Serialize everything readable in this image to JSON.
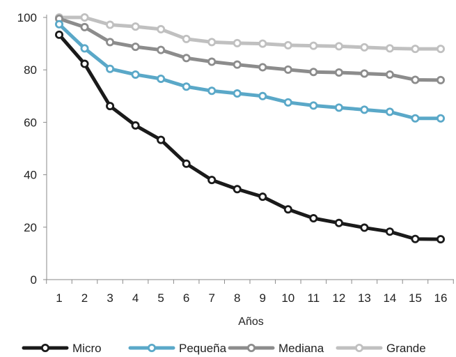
{
  "chart_data": {
    "type": "line",
    "xlabel": "Años",
    "ylabel": "",
    "ylim": [
      0,
      100
    ],
    "yticks": [
      "0",
      "20",
      "40",
      "60",
      "80",
      "100"
    ],
    "grid": false,
    "legend_position": "bottom",
    "x": [
      "1",
      "2",
      "3",
      "4",
      "5",
      "6",
      "7",
      "8",
      "9",
      "10",
      "11",
      "12",
      "13",
      "14",
      "15",
      "16"
    ],
    "series": [
      {
        "name": "Micro",
        "color": "#1a1a1a",
        "values": [
          93.4,
          82.3,
          66.2,
          58.8,
          53.3,
          44.2,
          38.0,
          34.5,
          31.6,
          26.8,
          23.4,
          21.6,
          19.8,
          18.3,
          15.5,
          15.4
        ]
      },
      {
        "name": "Pequeña",
        "color": "#5aa8c8",
        "values": [
          97.4,
          88.2,
          80.4,
          78.2,
          76.6,
          73.6,
          72.0,
          71.0,
          70.0,
          67.6,
          66.4,
          65.6,
          64.8,
          64.0,
          61.5,
          61.5
        ]
      },
      {
        "name": "Mediana",
        "color": "#8c8c8c",
        "values": [
          99.5,
          96.3,
          90.6,
          88.8,
          87.6,
          84.5,
          83.1,
          82.0,
          81.0,
          80.1,
          79.2,
          79.0,
          78.6,
          78.2,
          76.2,
          76.1
        ]
      },
      {
        "name": "Grande",
        "color": "#c0c0c0",
        "values": [
          100.0,
          100.0,
          97.2,
          96.5,
          95.5,
          91.8,
          90.6,
          90.2,
          90.0,
          89.4,
          89.2,
          89.0,
          88.6,
          88.2,
          88.0,
          88.0
        ]
      }
    ]
  }
}
